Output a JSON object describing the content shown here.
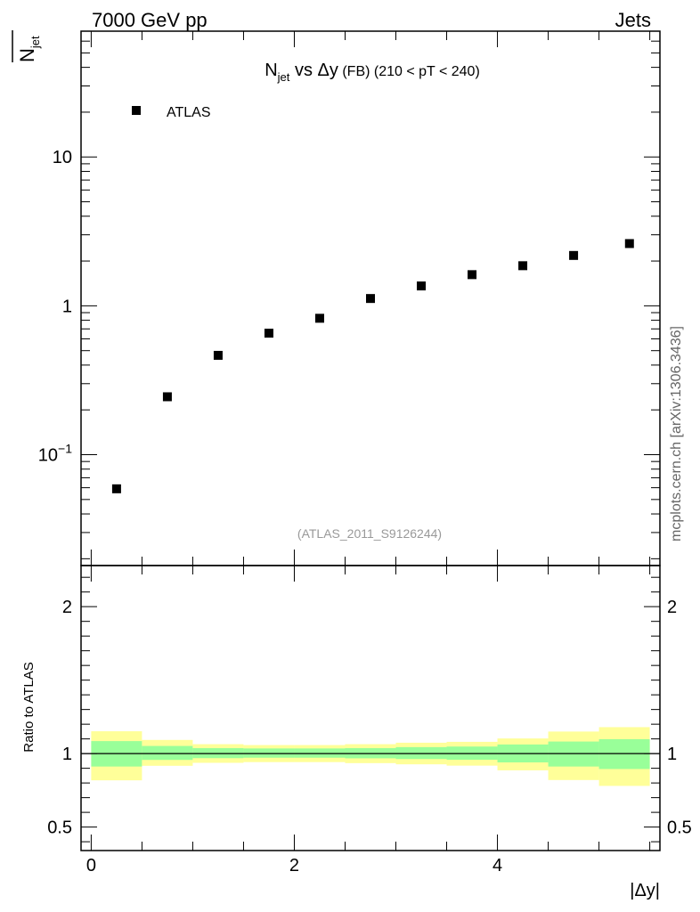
{
  "header": {
    "energy_label": "7000 GeV pp",
    "category_label": "Jets"
  },
  "watermark": {
    "analysis_id": "(ATLAS_2011_S9126244)",
    "source": "mcplots.cern.ch [arXiv:1306.3436]"
  },
  "colors": {
    "data_marker": "#000000",
    "band_inner": "#99ff99",
    "band_outer": "#ffff99",
    "frame": "#000000"
  },
  "chart_data": [
    {
      "type": "scatter",
      "title_parts": {
        "main": "N",
        "sub": "jet",
        "rest": " vs Δy",
        "small": " (FB)",
        "tail": " (210 < pT < 240)"
      },
      "ylabel_main": "N",
      "ylabel_sub": "jet",
      "legend": [
        {
          "name": "ATLAS",
          "marker": "square"
        }
      ],
      "legend_position": "top-left",
      "x_scale": "linear",
      "y_scale": "log",
      "xlim": [
        -0.1,
        5.6
      ],
      "ylim": [
        0.018,
        70
      ],
      "ytick_labels": [
        {
          "value": 0.1,
          "base": "10",
          "exp": "−1"
        },
        {
          "value": 1,
          "base": "1",
          "exp": ""
        },
        {
          "value": 10,
          "base": "10",
          "exp": ""
        }
      ],
      "series": [
        {
          "name": "ATLAS",
          "x": [
            0.25,
            0.75,
            1.25,
            1.75,
            2.25,
            2.75,
            3.25,
            3.75,
            4.25,
            4.75,
            5.3
          ],
          "y": [
            0.059,
            0.245,
            0.465,
            0.655,
            0.825,
            1.12,
            1.36,
            1.62,
            1.86,
            2.18,
            2.62
          ]
        }
      ]
    },
    {
      "type": "area",
      "ylabel": "Ratio to ATLAS",
      "xlabel": "|Δy|",
      "x_scale": "linear",
      "xlim": [
        -0.1,
        5.6
      ],
      "ylim": [
        0.34,
        2.28
      ],
      "xticks": [
        0,
        2,
        4
      ],
      "yticks": [
        0.5,
        1,
        2
      ],
      "reference_line": 1,
      "bins": [
        {
          "lo": 0.0,
          "hi": 0.5,
          "inner": [
            0.912,
            1.085
          ],
          "outer": [
            0.818,
            1.152
          ]
        },
        {
          "lo": 0.5,
          "hi": 1.0,
          "inner": [
            0.957,
            1.052
          ],
          "outer": [
            0.917,
            1.093
          ]
        },
        {
          "lo": 1.0,
          "hi": 1.5,
          "inner": [
            0.969,
            1.037
          ],
          "outer": [
            0.937,
            1.064
          ]
        },
        {
          "lo": 1.5,
          "hi": 2.0,
          "inner": [
            0.972,
            1.035
          ],
          "outer": [
            0.942,
            1.058
          ]
        },
        {
          "lo": 2.0,
          "hi": 2.5,
          "inner": [
            0.972,
            1.035
          ],
          "outer": [
            0.942,
            1.058
          ]
        },
        {
          "lo": 2.5,
          "hi": 3.0,
          "inner": [
            0.968,
            1.037
          ],
          "outer": [
            0.935,
            1.064
          ]
        },
        {
          "lo": 3.0,
          "hi": 3.5,
          "inner": [
            0.963,
            1.044
          ],
          "outer": [
            0.927,
            1.074
          ]
        },
        {
          "lo": 3.5,
          "hi": 4.0,
          "inner": [
            0.958,
            1.048
          ],
          "outer": [
            0.918,
            1.08
          ]
        },
        {
          "lo": 4.0,
          "hi": 4.5,
          "inner": [
            0.94,
            1.062
          ],
          "outer": [
            0.886,
            1.103
          ]
        },
        {
          "lo": 4.5,
          "hi": 5.0,
          "inner": [
            0.912,
            1.082
          ],
          "outer": [
            0.82,
            1.15
          ]
        },
        {
          "lo": 5.0,
          "hi": 5.5,
          "inner": [
            0.895,
            1.098
          ],
          "outer": [
            0.78,
            1.18
          ]
        }
      ]
    }
  ]
}
